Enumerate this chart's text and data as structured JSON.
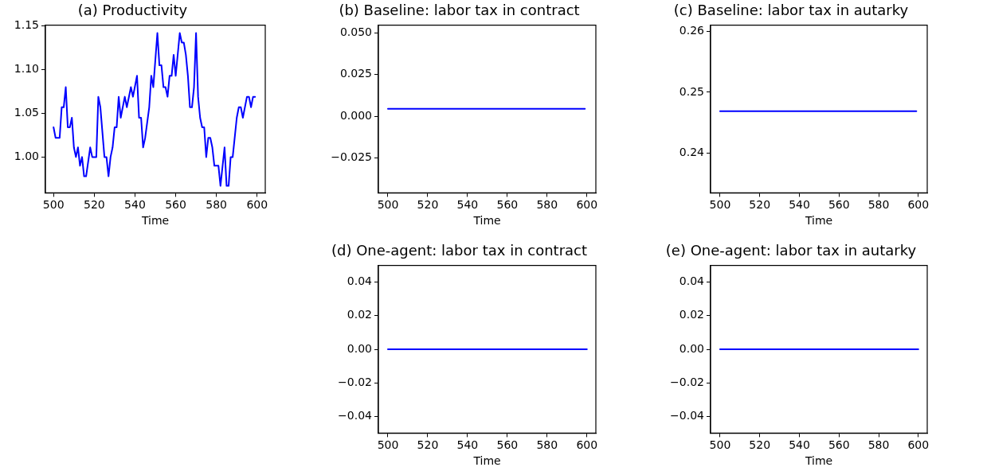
{
  "chart_data": [
    {
      "type": "line",
      "title": "(a) Productivity",
      "xlabel": "Time",
      "grid": false,
      "legend": false,
      "marker": "none",
      "line_style": "solid",
      "xlim": [
        496,
        604
      ],
      "xticks": [
        500,
        520,
        540,
        560,
        580,
        600
      ],
      "ylim": [
        0.959,
        1.151
      ],
      "yticks": [
        {
          "value": 1.0,
          "label": "1.00"
        },
        {
          "value": 1.05,
          "label": "1.05"
        },
        {
          "value": 1.1,
          "label": "1.10"
        },
        {
          "value": 1.15,
          "label": "1.15"
        }
      ],
      "series": [
        {
          "color": "#0000ff",
          "x": [
            500,
            501,
            503,
            504,
            505,
            506,
            507,
            508,
            509,
            510,
            511,
            512,
            513,
            514,
            515,
            516,
            518,
            519,
            521,
            522,
            523,
            525,
            526,
            527,
            528,
            529,
            530,
            531,
            532,
            533,
            534,
            535,
            536,
            538,
            539,
            541,
            542,
            543,
            544,
            545,
            547,
            548,
            549,
            551,
            552,
            553,
            554,
            555,
            556,
            557,
            558,
            559,
            560,
            562,
            563,
            564,
            565,
            566,
            567,
            568,
            569,
            570,
            571,
            572,
            573,
            574,
            575,
            576,
            577,
            578,
            579,
            581,
            582,
            584,
            585,
            586,
            587,
            588,
            590,
            591,
            592,
            593,
            595,
            596,
            597,
            598,
            599
          ],
          "values": [
            1.034,
            1.022,
            1.022,
            1.057,
            1.057,
            1.08,
            1.034,
            1.034,
            1.045,
            1.011,
            1.0,
            1.011,
            0.99,
            1.0,
            0.978,
            0.978,
            1.011,
            1.0,
            1.0,
            1.069,
            1.057,
            1.0,
            1.0,
            0.978,
            1.0,
            1.011,
            1.034,
            1.034,
            1.069,
            1.045,
            1.057,
            1.069,
            1.057,
            1.08,
            1.069,
            1.093,
            1.045,
            1.045,
            1.011,
            1.022,
            1.057,
            1.093,
            1.08,
            1.142,
            1.105,
            1.105,
            1.08,
            1.08,
            1.069,
            1.093,
            1.093,
            1.117,
            1.093,
            1.142,
            1.131,
            1.131,
            1.117,
            1.093,
            1.057,
            1.057,
            1.08,
            1.142,
            1.069,
            1.045,
            1.034,
            1.034,
            1.0,
            1.022,
            1.022,
            1.011,
            0.99,
            0.99,
            0.967,
            1.011,
            0.967,
            0.967,
            1.0,
            1.0,
            1.045,
            1.057,
            1.057,
            1.045,
            1.069,
            1.069,
            1.057,
            1.069,
            1.069
          ]
        }
      ]
    },
    {
      "type": "line",
      "title": "(b) Baseline: labor tax in contract",
      "xlabel": "Time",
      "grid": false,
      "legend": false,
      "marker": "none",
      "line_style": "solid",
      "xlim": [
        495.2,
        604.5
      ],
      "xticks": [
        500,
        520,
        540,
        560,
        580,
        600
      ],
      "ylim": [
        -0.0459,
        0.0547
      ],
      "yticks": [
        {
          "value": -0.025,
          "label": "−0.025"
        },
        {
          "value": 0,
          "label": "0.000"
        },
        {
          "value": 0.025,
          "label": "0.025"
        },
        {
          "value": 0.05,
          "label": "0.050"
        }
      ],
      "series": [
        {
          "color": "#0000ff",
          "x": [
            500,
            599
          ],
          "values": [
            0.0045,
            0.0045
          ]
        }
      ]
    },
    {
      "type": "line",
      "title": "(c) Baseline: labor tax in autarky",
      "xlabel": "Time",
      "grid": false,
      "legend": false,
      "marker": "none",
      "line_style": "solid",
      "xlim": [
        495.2,
        604.5
      ],
      "xticks": [
        500,
        520,
        540,
        560,
        580,
        600
      ],
      "ylim": [
        0.2335,
        0.261
      ],
      "yticks": [
        {
          "value": 0.24,
          "label": "0.24"
        },
        {
          "value": 0.25,
          "label": "0.25"
        },
        {
          "value": 0.26,
          "label": "0.26"
        }
      ],
      "series": [
        {
          "color": "#0000ff",
          "x": [
            500,
            599
          ],
          "values": [
            0.2469,
            0.2469
          ]
        }
      ]
    },
    {
      "type": "line",
      "title": "(d) One-agent: labor tax in contract",
      "xlabel": "Time",
      "grid": false,
      "legend": false,
      "marker": "none",
      "line_style": "solid",
      "xlim": [
        495.2,
        604.5
      ],
      "xticks": [
        500,
        520,
        540,
        560,
        580,
        600
      ],
      "ylim": [
        -0.05,
        0.05
      ],
      "yticks": [
        {
          "value": -0.04,
          "label": "−0.04"
        },
        {
          "value": -0.02,
          "label": "−0.02"
        },
        {
          "value": 0,
          "label": "0.00"
        },
        {
          "value": 0.02,
          "label": "0.02"
        },
        {
          "value": 0.04,
          "label": "0.04"
        }
      ],
      "series": [
        {
          "color": "#0000ff",
          "x": [
            500,
            600
          ],
          "values": [
            0,
            0
          ]
        }
      ]
    },
    {
      "type": "line",
      "title": "(e) One-agent: labor tax in autarky",
      "xlabel": "Time",
      "grid": false,
      "legend": false,
      "marker": "none",
      "line_style": "solid",
      "xlim": [
        495.2,
        604.5
      ],
      "xticks": [
        500,
        520,
        540,
        560,
        580,
        600
      ],
      "ylim": [
        -0.05,
        0.05
      ],
      "yticks": [
        {
          "value": -0.04,
          "label": "−0.04"
        },
        {
          "value": -0.02,
          "label": "−0.02"
        },
        {
          "value": 0,
          "label": "0.00"
        },
        {
          "value": 0.02,
          "label": "0.02"
        },
        {
          "value": 0.04,
          "label": "0.04"
        }
      ],
      "series": [
        {
          "color": "#0000ff",
          "x": [
            500,
            600
          ],
          "values": [
            0,
            0
          ]
        }
      ]
    }
  ]
}
